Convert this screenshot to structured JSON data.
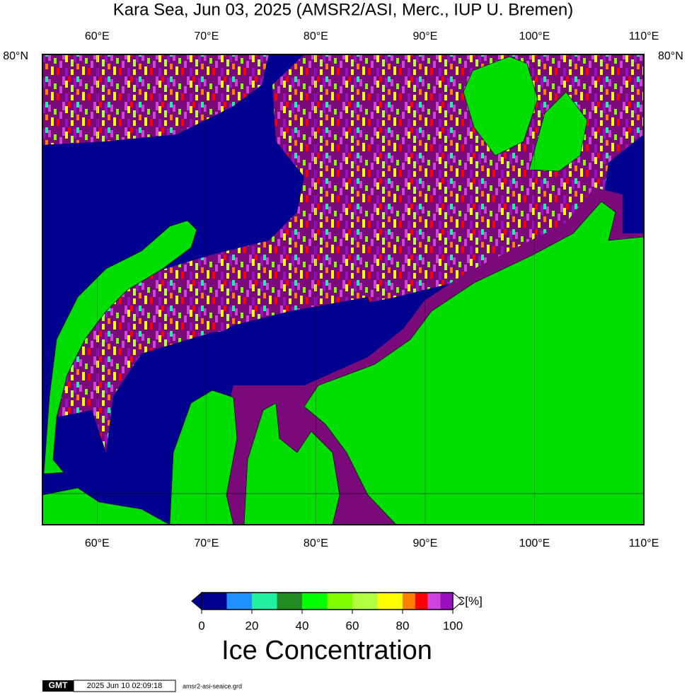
{
  "title": "Kara Sea, Jun 03, 2025 (AMSR2/ASI, Merc., IUP U. Bremen)",
  "map": {
    "xlim": [
      55,
      110
    ],
    "xticks": [
      {
        "value": 60,
        "label": "60°E"
      },
      {
        "value": 70,
        "label": "70°E"
      },
      {
        "value": 80,
        "label": "80°E"
      },
      {
        "value": 90,
        "label": "90°E"
      },
      {
        "value": 100,
        "label": "100°E"
      },
      {
        "value": 110,
        "label": "110°E"
      }
    ],
    "lat_label": "80°N"
  },
  "colorbar": {
    "bounds": [
      0,
      10,
      20,
      30,
      40,
      50,
      60,
      70,
      80,
      85,
      90,
      95,
      100
    ],
    "colors": [
      "#000090",
      "#1e90ff",
      "#20f0a0",
      "#228b22",
      "#00ff00",
      "#7fff00",
      "#b0ff40",
      "#ffff00",
      "#ff8000",
      "#ff0000",
      "#cc44dd",
      "#9a10c0"
    ],
    "ticks": [
      0,
      20,
      40,
      60,
      80,
      100
    ],
    "unit": "C[%]",
    "title": "Ice Concentration"
  },
  "footer": {
    "logo": "GMT",
    "timestamp": "2025 Jun 10 02:09:18",
    "file": "amsr2-asi-seaice.grd"
  }
}
